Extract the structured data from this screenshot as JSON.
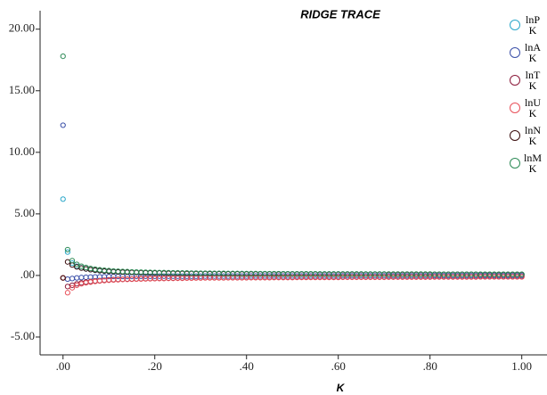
{
  "chart_data": {
    "type": "scatter",
    "title": "RIDGE TRACE",
    "x_label": "K",
    "x": [
      0,
      0.01,
      0.02,
      0.03,
      0.04,
      0.05,
      0.06,
      0.07,
      0.08,
      0.09,
      0.1,
      0.11,
      0.12,
      0.13,
      0.14,
      0.15,
      0.16,
      0.17,
      0.18,
      0.19,
      0.2,
      0.21,
      0.22,
      0.23,
      0.24,
      0.25,
      0.26,
      0.27,
      0.28,
      0.29,
      0.3,
      0.31,
      0.32,
      0.33,
      0.34,
      0.35,
      0.36,
      0.37,
      0.38,
      0.39,
      0.4,
      0.41,
      0.42,
      0.43,
      0.44,
      0.45,
      0.46,
      0.47,
      0.48,
      0.49,
      0.5,
      0.51,
      0.52,
      0.53,
      0.54,
      0.55,
      0.56,
      0.57,
      0.58,
      0.59,
      0.6,
      0.61,
      0.62,
      0.63,
      0.64,
      0.65,
      0.66,
      0.67,
      0.68,
      0.69,
      0.7,
      0.71,
      0.72,
      0.73,
      0.74,
      0.75,
      0.76,
      0.77,
      0.78,
      0.79,
      0.8,
      0.81,
      0.82,
      0.83,
      0.84,
      0.85,
      0.86,
      0.87,
      0.88,
      0.89,
      0.9,
      0.91,
      0.92,
      0.93,
      0.94,
      0.95,
      0.96,
      0.97,
      0.98,
      0.99,
      1.0
    ],
    "series": [
      {
        "name": "lnP K",
        "color": "#2aa7c9",
        "values": [
          6.2,
          1.9,
          1.0,
          0.75,
          0.62,
          0.53,
          0.47,
          0.42,
          0.38,
          0.35,
          0.32,
          0.3,
          0.29,
          0.28,
          0.27,
          0.26,
          0.25,
          0.24,
          0.23,
          0.22,
          0.22,
          0.21,
          0.21,
          0.2,
          0.2,
          0.19,
          0.19,
          0.18,
          0.18,
          0.18,
          0.17,
          0.17,
          0.17,
          0.16,
          0.16,
          0.16,
          0.15,
          0.15,
          0.15,
          0.15,
          0.14,
          0.14,
          0.14,
          0.14,
          0.14,
          0.13,
          0.13,
          0.13,
          0.13,
          0.13,
          0.12,
          0.12,
          0.12,
          0.12,
          0.12,
          0.12,
          0.12,
          0.12,
          0.12,
          0.12,
          0.12,
          0.11,
          0.11,
          0.11,
          0.11,
          0.11,
          0.11,
          0.11,
          0.11,
          0.11,
          0.11,
          0.1,
          0.1,
          0.1,
          0.1,
          0.1,
          0.1,
          0.1,
          0.1,
          0.1,
          0.1,
          0.1,
          0.1,
          0.1,
          0.1,
          0.1,
          0.1,
          0.1,
          0.1,
          0.1,
          0.1,
          0.09,
          0.09,
          0.09,
          0.09,
          0.09,
          0.09,
          0.09,
          0.09,
          0.09,
          0.09
        ]
      },
      {
        "name": "lnA K",
        "color": "#3a4fa8",
        "values": [
          12.2,
          -0.3,
          -0.25,
          -0.2,
          -0.17,
          -0.15,
          -0.13,
          -0.12,
          -0.11,
          -0.1,
          -0.09,
          -0.08,
          -0.08,
          -0.08,
          -0.08,
          -0.08,
          -0.07,
          -0.07,
          -0.07,
          -0.07,
          -0.07,
          -0.06,
          -0.06,
          -0.06,
          -0.06,
          -0.06,
          -0.06,
          -0.06,
          -0.06,
          -0.06,
          -0.06,
          -0.05,
          -0.05,
          -0.05,
          -0.05,
          -0.05,
          -0.05,
          -0.05,
          -0.05,
          -0.05,
          -0.05,
          -0.04,
          -0.04,
          -0.04,
          -0.04,
          -0.04,
          -0.04,
          -0.04,
          -0.04,
          -0.04,
          -0.04,
          -0.04,
          -0.04,
          -0.04,
          -0.04,
          -0.04,
          -0.04,
          -0.04,
          -0.04,
          -0.04,
          -0.04,
          -0.03,
          -0.03,
          -0.03,
          -0.03,
          -0.03,
          -0.03,
          -0.03,
          -0.03,
          -0.03,
          -0.03,
          -0.03,
          -0.03,
          -0.03,
          -0.03,
          -0.03,
          -0.03,
          -0.03,
          -0.03,
          -0.03,
          -0.03,
          -0.02,
          -0.02,
          -0.02,
          -0.02,
          -0.02,
          -0.02,
          -0.02,
          -0.02,
          -0.02,
          -0.02,
          -0.02,
          -0.02,
          -0.02,
          -0.02,
          -0.02,
          -0.02,
          -0.02,
          -0.02,
          -0.02,
          -0.02
        ]
      },
      {
        "name": "lnT K",
        "color": "#8b1a3a",
        "values": [
          -0.2,
          -0.9,
          -0.8,
          -0.68,
          -0.6,
          -0.54,
          -0.49,
          -0.45,
          -0.42,
          -0.39,
          -0.36,
          -0.34,
          -0.32,
          -0.31,
          -0.3,
          -0.29,
          -0.28,
          -0.27,
          -0.26,
          -0.25,
          -0.24,
          -0.23,
          -0.23,
          -0.22,
          -0.22,
          -0.21,
          -0.21,
          -0.2,
          -0.2,
          -0.19,
          -0.19,
          -0.18,
          -0.18,
          -0.18,
          -0.18,
          -0.18,
          -0.17,
          -0.17,
          -0.17,
          -0.17,
          -0.17,
          -0.16,
          -0.16,
          -0.16,
          -0.16,
          -0.16,
          -0.15,
          -0.15,
          -0.15,
          -0.15,
          -0.15,
          -0.14,
          -0.14,
          -0.14,
          -0.14,
          -0.14,
          -0.14,
          -0.14,
          -0.14,
          -0.14,
          -0.14,
          -0.13,
          -0.13,
          -0.13,
          -0.13,
          -0.13,
          -0.13,
          -0.13,
          -0.13,
          -0.13,
          -0.13,
          -0.12,
          -0.12,
          -0.12,
          -0.12,
          -0.12,
          -0.12,
          -0.12,
          -0.12,
          -0.12,
          -0.12,
          -0.11,
          -0.11,
          -0.11,
          -0.11,
          -0.11,
          -0.11,
          -0.11,
          -0.11,
          -0.11,
          -0.11,
          -0.1,
          -0.1,
          -0.1,
          -0.1,
          -0.1,
          -0.1,
          -0.1,
          -0.1,
          -0.1,
          -0.1
        ]
      },
      {
        "name": "lnU K",
        "color": "#e8515a",
        "values": [
          -0.2,
          -1.4,
          -1.0,
          -0.8,
          -0.68,
          -0.6,
          -0.54,
          -0.49,
          -0.45,
          -0.42,
          -0.39,
          -0.37,
          -0.35,
          -0.33,
          -0.32,
          -0.31,
          -0.3,
          -0.29,
          -0.28,
          -0.27,
          -0.26,
          -0.25,
          -0.25,
          -0.24,
          -0.24,
          -0.23,
          -0.23,
          -0.22,
          -0.22,
          -0.21,
          -0.21,
          -0.2,
          -0.2,
          -0.2,
          -0.2,
          -0.2,
          -0.19,
          -0.19,
          -0.19,
          -0.19,
          -0.19,
          -0.18,
          -0.18,
          -0.18,
          -0.18,
          -0.18,
          -0.17,
          -0.17,
          -0.17,
          -0.17,
          -0.17,
          -0.16,
          -0.16,
          -0.16,
          -0.16,
          -0.16,
          -0.16,
          -0.16,
          -0.16,
          -0.16,
          -0.16,
          -0.15,
          -0.15,
          -0.15,
          -0.15,
          -0.15,
          -0.15,
          -0.15,
          -0.15,
          -0.15,
          -0.15,
          -0.14,
          -0.14,
          -0.14,
          -0.14,
          -0.14,
          -0.14,
          -0.14,
          -0.14,
          -0.14,
          -0.14,
          -0.13,
          -0.13,
          -0.13,
          -0.13,
          -0.13,
          -0.13,
          -0.13,
          -0.13,
          -0.13,
          -0.13,
          -0.12,
          -0.12,
          -0.12,
          -0.12,
          -0.12,
          -0.12,
          -0.12,
          -0.12,
          -0.12,
          -0.12
        ]
      },
      {
        "name": "lnN K",
        "color": "#3a0d0d",
        "values": [
          -0.2,
          1.1,
          0.85,
          0.7,
          0.6,
          0.53,
          0.47,
          0.43,
          0.39,
          0.36,
          0.33,
          0.31,
          0.29,
          0.27,
          0.26,
          0.25,
          0.24,
          0.23,
          0.22,
          0.21,
          0.2,
          0.2,
          0.19,
          0.18,
          0.18,
          0.17,
          0.17,
          0.16,
          0.16,
          0.15,
          0.15,
          0.15,
          0.14,
          0.14,
          0.14,
          0.13,
          0.13,
          0.13,
          0.13,
          0.12,
          0.12,
          0.12,
          0.12,
          0.12,
          0.12,
          0.12,
          0.11,
          0.11,
          0.11,
          0.11,
          0.11,
          0.11,
          0.11,
          0.11,
          0.11,
          0.11,
          0.1,
          0.1,
          0.1,
          0.1,
          0.1,
          0.1,
          0.1,
          0.1,
          0.1,
          0.1,
          0.1,
          0.1,
          0.1,
          0.1,
          0.1,
          0.09,
          0.09,
          0.09,
          0.09,
          0.09,
          0.09,
          0.09,
          0.09,
          0.09,
          0.09,
          0.09,
          0.09,
          0.09,
          0.09,
          0.09,
          0.09,
          0.09,
          0.09,
          0.09,
          0.09,
          0.08,
          0.08,
          0.08,
          0.08,
          0.08,
          0.08,
          0.08,
          0.08,
          0.08,
          0.08
        ]
      },
      {
        "name": "lnM K",
        "color": "#2e8b57",
        "values": [
          17.8,
          2.1,
          1.2,
          0.9,
          0.75,
          0.65,
          0.57,
          0.51,
          0.46,
          0.42,
          0.39,
          0.36,
          0.34,
          0.32,
          0.31,
          0.29,
          0.28,
          0.27,
          0.26,
          0.25,
          0.24,
          0.23,
          0.23,
          0.22,
          0.21,
          0.21,
          0.2,
          0.2,
          0.19,
          0.19,
          0.18,
          0.18,
          0.18,
          0.17,
          0.17,
          0.17,
          0.16,
          0.16,
          0.16,
          0.15,
          0.15,
          0.15,
          0.15,
          0.14,
          0.14,
          0.14,
          0.14,
          0.14,
          0.13,
          0.13,
          0.13,
          0.13,
          0.13,
          0.13,
          0.13,
          0.13,
          0.12,
          0.12,
          0.12,
          0.12,
          0.12,
          0.12,
          0.12,
          0.12,
          0.12,
          0.12,
          0.11,
          0.11,
          0.11,
          0.11,
          0.11,
          0.11,
          0.11,
          0.11,
          0.11,
          0.11,
          0.11,
          0.11,
          0.11,
          0.11,
          0.11,
          0.1,
          0.1,
          0.1,
          0.1,
          0.1,
          0.1,
          0.1,
          0.1,
          0.1,
          0.1,
          0.1,
          0.1,
          0.1,
          0.1,
          0.1,
          0.1,
          0.1,
          0.1,
          0.1,
          0.1
        ]
      }
    ],
    "xlim": [
      -0.05,
      1.055
    ],
    "ylim": [
      -6.45,
      21.5
    ],
    "xticks": [
      {
        "value": 0,
        "label": ".00"
      },
      {
        "value": 0.2,
        "label": ".20"
      },
      {
        "value": 0.4,
        "label": ".40"
      },
      {
        "value": 0.6,
        "label": ".60"
      },
      {
        "value": 0.8,
        "label": ".80"
      },
      {
        "value": 1.0,
        "label": "1.00"
      }
    ],
    "yticks": [
      {
        "value": -5,
        "label": "-5.00"
      },
      {
        "value": 0,
        "label": ".00"
      },
      {
        "value": 5,
        "label": "5.00"
      },
      {
        "value": 10,
        "label": "10.00"
      },
      {
        "value": 15,
        "label": "15.00"
      },
      {
        "value": 20,
        "label": "20.00"
      }
    ],
    "legend": "top-right"
  }
}
